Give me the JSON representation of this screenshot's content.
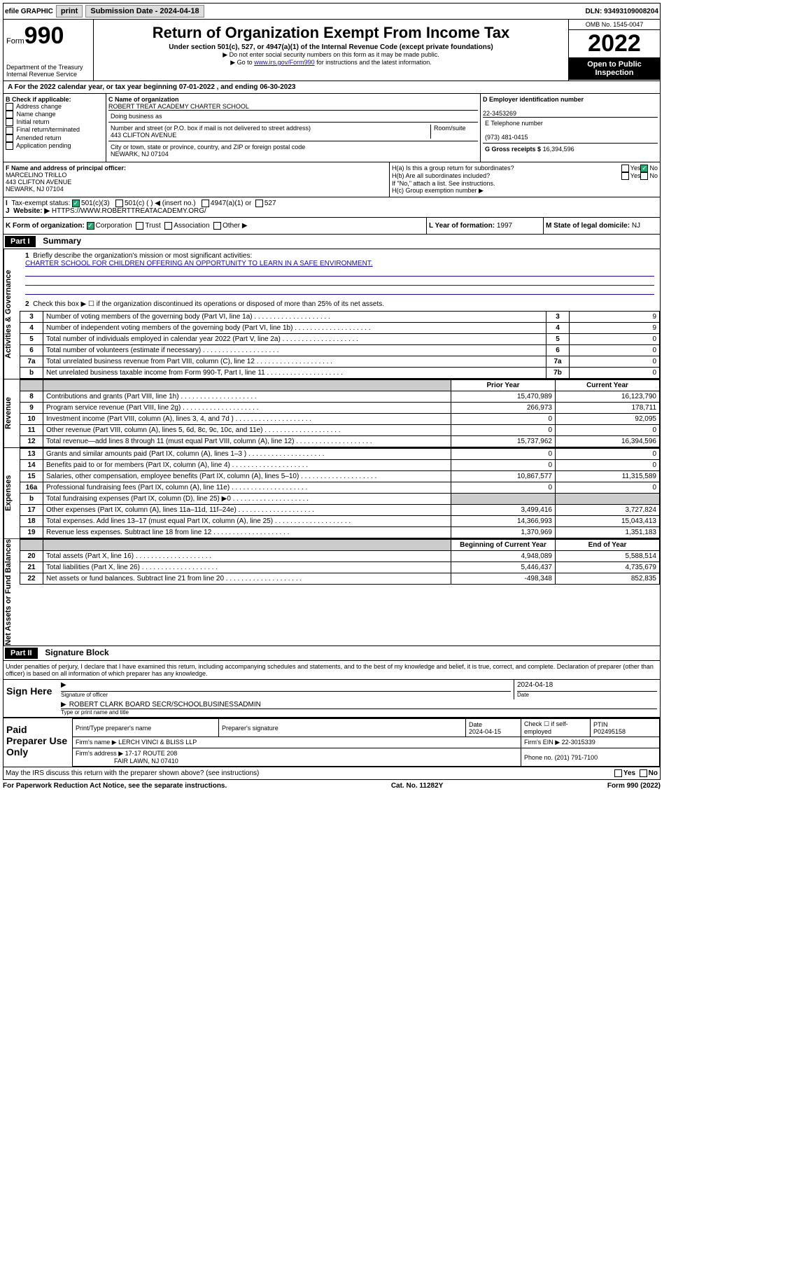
{
  "topbar": {
    "efile": "efile GRAPHIC",
    "print": "print",
    "sub_label": "Submission Date - 2024-04-18",
    "dln": "DLN: 93493109008204"
  },
  "header": {
    "form": "Form",
    "num": "990",
    "dept": "Department of the Treasury\nInternal Revenue Service",
    "title": "Return of Organization Exempt From Income Tax",
    "subtitle": "Under section 501(c), 527, or 4947(a)(1) of the Internal Revenue Code (except private foundations)",
    "note1": "▶ Do not enter social security numbers on this form as it may be made public.",
    "note2_pre": "▶ Go to ",
    "note2_link": "www.irs.gov/Form990",
    "note2_post": " for instructions and the latest information.",
    "omb": "OMB No. 1545-0047",
    "year": "2022",
    "open": "Open to Public Inspection"
  },
  "sectionA": "A For the 2022 calendar year, or tax year beginning 07-01-2022   , and ending 06-30-2023",
  "boxB": {
    "label": "B Check if applicable:",
    "items": [
      "Address change",
      "Name change",
      "Initial return",
      "Final return/terminated",
      "Amended return",
      "Application pending"
    ]
  },
  "boxC": {
    "label": "C Name of organization",
    "name": "ROBERT TREAT ACADEMY CHARTER SCHOOL",
    "dba_label": "Doing business as",
    "addr_label": "Number and street (or P.O. box if mail is not delivered to street address)",
    "room": "Room/suite",
    "addr": "443 CLIFTON AVENUE",
    "city_label": "City or town, state or province, country, and ZIP or foreign postal code",
    "city": "NEWARK, NJ  07104"
  },
  "boxD": {
    "label": "D Employer identification number",
    "val": "22-3453269"
  },
  "boxE": {
    "label": "E Telephone number",
    "val": "(973) 481-0415"
  },
  "boxG": {
    "label": "G Gross receipts $",
    "val": "16,394,596"
  },
  "boxF": {
    "label": "F Name and address of principal officer:",
    "name": "MARCELINO TRILLO",
    "addr": "443 CLIFTON AVENUE",
    "city": "NEWARK, NJ  07104"
  },
  "boxH": {
    "a": "H(a)  Is this a group return for subordinates?",
    "b": "H(b)  Are all subordinates included?",
    "b2": "If \"No,\" attach a list. See instructions.",
    "c": "H(c)  Group exemption number ▶"
  },
  "boxI": {
    "label": "Tax-exempt status:",
    "opts": [
      "501(c)(3)",
      "501(c) (  ) ◀ (insert no.)",
      "4947(a)(1) or",
      "527"
    ]
  },
  "boxJ": {
    "label": "Website: ▶",
    "val": "HTTPS://WWW.ROBERTTREATACADEMY.ORG/"
  },
  "boxK": {
    "label": "K Form of organization:",
    "opts": [
      "Corporation",
      "Trust",
      "Association",
      "Other ▶"
    ]
  },
  "boxL": {
    "label": "L Year of formation:",
    "val": "1997"
  },
  "boxM": {
    "label": "M State of legal domicile:",
    "val": "NJ"
  },
  "part1": {
    "hdr": "Part I",
    "title": "Summary",
    "q1": "Briefly describe the organization's mission or most significant activities:",
    "q1ans": "CHARTER SCHOOL FOR CHILDREN OFFERING AN OPPORTUNITY TO LEARN IN A SAFE ENVIRONMENT.",
    "q2": "Check this box ▶ ☐  if the organization discontinued its operations or disposed of more than 25% of its net assets.",
    "sidebar_gov": "Activities & Governance",
    "sidebar_rev": "Revenue",
    "sidebar_exp": "Expenses",
    "sidebar_net": "Net Assets or Fund Balances",
    "rows_gov": [
      {
        "ln": "3",
        "desc": "Number of voting members of the governing body (Part VI, line 1a)",
        "box": "3",
        "val": "9"
      },
      {
        "ln": "4",
        "desc": "Number of independent voting members of the governing body (Part VI, line 1b)",
        "box": "4",
        "val": "9"
      },
      {
        "ln": "5",
        "desc": "Total number of individuals employed in calendar year 2022 (Part V, line 2a)",
        "box": "5",
        "val": "0"
      },
      {
        "ln": "6",
        "desc": "Total number of volunteers (estimate if necessary)",
        "box": "6",
        "val": "0"
      },
      {
        "ln": "7a",
        "desc": "Total unrelated business revenue from Part VIII, column (C), line 12",
        "box": "7a",
        "val": "0"
      },
      {
        "ln": "b",
        "desc": "Net unrelated business taxable income from Form 990-T, Part I, line 11",
        "box": "7b",
        "val": "0"
      }
    ],
    "hdr_prior": "Prior Year",
    "hdr_curr": "Current Year",
    "rows_rev": [
      {
        "ln": "8",
        "desc": "Contributions and grants (Part VIII, line 1h)",
        "prior": "15,470,989",
        "curr": "16,123,790"
      },
      {
        "ln": "9",
        "desc": "Program service revenue (Part VIII, line 2g)",
        "prior": "266,973",
        "curr": "178,711"
      },
      {
        "ln": "10",
        "desc": "Investment income (Part VIII, column (A), lines 3, 4, and 7d )",
        "prior": "0",
        "curr": "92,095"
      },
      {
        "ln": "11",
        "desc": "Other revenue (Part VIII, column (A), lines 5, 6d, 8c, 9c, 10c, and 11e)",
        "prior": "0",
        "curr": "0"
      },
      {
        "ln": "12",
        "desc": "Total revenue—add lines 8 through 11 (must equal Part VIII, column (A), line 12)",
        "prior": "15,737,962",
        "curr": "16,394,596"
      }
    ],
    "rows_exp": [
      {
        "ln": "13",
        "desc": "Grants and similar amounts paid (Part IX, column (A), lines 1–3 )",
        "prior": "0",
        "curr": "0"
      },
      {
        "ln": "14",
        "desc": "Benefits paid to or for members (Part IX, column (A), line 4)",
        "prior": "0",
        "curr": "0"
      },
      {
        "ln": "15",
        "desc": "Salaries, other compensation, employee benefits (Part IX, column (A), lines 5–10)",
        "prior": "10,867,577",
        "curr": "11,315,589"
      },
      {
        "ln": "16a",
        "desc": "Professional fundraising fees (Part IX, column (A), line 11e)",
        "prior": "0",
        "curr": "0"
      },
      {
        "ln": "b",
        "desc": "Total fundraising expenses (Part IX, column (D), line 25) ▶0",
        "prior": "",
        "curr": ""
      },
      {
        "ln": "17",
        "desc": "Other expenses (Part IX, column (A), lines 11a–11d, 11f–24e)",
        "prior": "3,499,416",
        "curr": "3,727,824"
      },
      {
        "ln": "18",
        "desc": "Total expenses. Add lines 13–17 (must equal Part IX, column (A), line 25)",
        "prior": "14,366,993",
        "curr": "15,043,413"
      },
      {
        "ln": "19",
        "desc": "Revenue less expenses. Subtract line 18 from line 12",
        "prior": "1,370,969",
        "curr": "1,351,183"
      }
    ],
    "hdr_beg": "Beginning of Current Year",
    "hdr_end": "End of Year",
    "rows_net": [
      {
        "ln": "20",
        "desc": "Total assets (Part X, line 16)",
        "prior": "4,948,089",
        "curr": "5,588,514"
      },
      {
        "ln": "21",
        "desc": "Total liabilities (Part X, line 26)",
        "prior": "5,446,437",
        "curr": "4,735,679"
      },
      {
        "ln": "22",
        "desc": "Net assets or fund balances. Subtract line 21 from line 20",
        "prior": "-498,348",
        "curr": "852,835"
      }
    ]
  },
  "part2": {
    "hdr": "Part II",
    "title": "Signature Block",
    "decl": "Under penalties of perjury, I declare that I have examined this return, including accompanying schedules and statements, and to the best of my knowledge and belief, it is true, correct, and complete. Declaration of preparer (other than officer) is based on all information of which preparer has any knowledge."
  },
  "sign": {
    "here": "Sign Here",
    "sig_label": "Signature of officer",
    "date_label": "Date",
    "date": "2024-04-18",
    "name": "ROBERT CLARK  BOARD SECR/SCHOOLBUSINESSADMIN",
    "name_label": "Type or print name and title"
  },
  "paid": {
    "label": "Paid Preparer Use Only",
    "col1": "Print/Type preparer's name",
    "col2": "Preparer's signature",
    "col3": "Date",
    "date": "2024-04-15",
    "col4": "Check ☐ if self-employed",
    "col5_label": "PTIN",
    "ptin": "P02495158",
    "firm_label": "Firm's name    ▶",
    "firm": "LERCH VINCI & BLISS LLP",
    "ein_label": "Firm's EIN ▶",
    "ein": "22-3015339",
    "addr_label": "Firm's address ▶",
    "addr1": "17-17 ROUTE 208",
    "addr2": "FAIR LAWN, NJ  07410",
    "phone_label": "Phone no.",
    "phone": "(201) 791-7100"
  },
  "may_irs": "May the IRS discuss this return with the preparer shown above? (see instructions)",
  "footer": {
    "left": "For Paperwork Reduction Act Notice, see the separate instructions.",
    "mid": "Cat. No. 11282Y",
    "right": "Form 990 (2022)"
  },
  "yn": {
    "yes": "Yes",
    "no": "No"
  }
}
